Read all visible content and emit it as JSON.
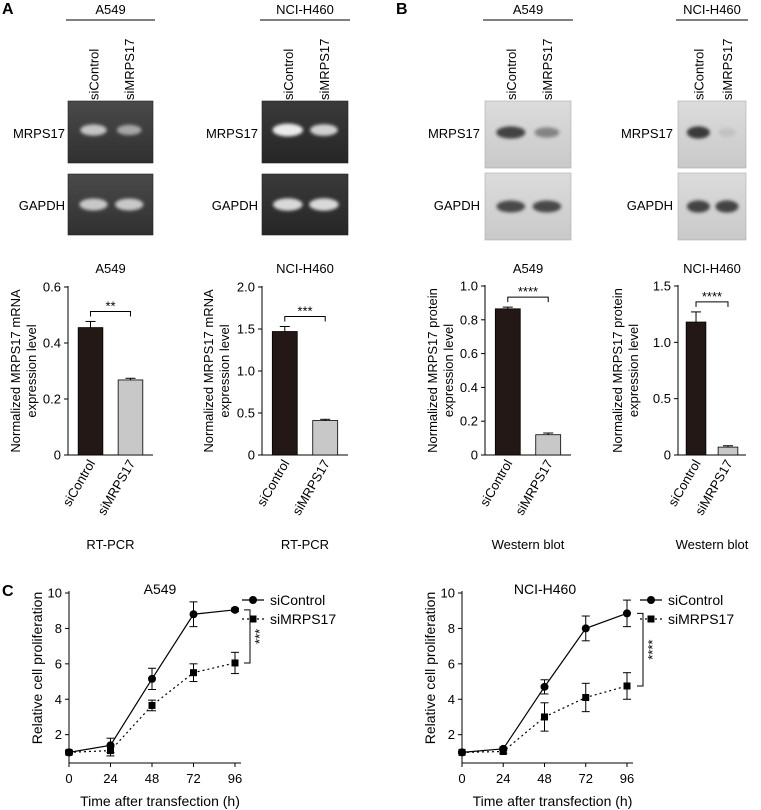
{
  "panel_letters": [
    "A",
    "B",
    "C"
  ],
  "gels": [
    {
      "cell_line": "A549",
      "lanes": [
        "siControl",
        "siMRPS17"
      ],
      "rows": [
        "MRPS17",
        "GAPDH"
      ],
      "style": "dark"
    },
    {
      "cell_line": "NCI-H460",
      "lanes": [
        "siControl",
        "siMRPS17"
      ],
      "rows": [
        "MRPS17",
        "GAPDH"
      ],
      "style": "dark"
    },
    {
      "cell_line": "A549",
      "lanes": [
        "siControl",
        "siMRPS17"
      ],
      "rows": [
        "MRPS17",
        "GAPDH"
      ],
      "style": "light"
    },
    {
      "cell_line": "NCI-H460",
      "lanes": [
        "siControl",
        "siMRPS17"
      ],
      "rows": [
        "MRPS17",
        "GAPDH"
      ],
      "style": "light"
    }
  ],
  "chart_data": [
    {
      "type": "bar",
      "title": "A549",
      "categories": [
        "siControl",
        "siMRPS17"
      ],
      "values": [
        0.455,
        0.268
      ],
      "errors": [
        0.022,
        0.006
      ],
      "ylabel": [
        "Normalized MRPS17 mRNA",
        "expression level"
      ],
      "xlabel": "RT-PCR",
      "ylim": [
        0,
        0.6
      ],
      "yticks": [
        0,
        0.2,
        0.4,
        0.6
      ],
      "ytick_labels": [
        "0",
        "0.2",
        "0.4",
        "0.6"
      ],
      "significance": "**"
    },
    {
      "type": "bar",
      "title": "NCI-H460",
      "categories": [
        "siControl",
        "siMRPS17"
      ],
      "values": [
        1.47,
        0.41
      ],
      "errors": [
        0.06,
        0.015
      ],
      "ylabel": [
        "Normalized MRPS17 mRNA",
        "expression level"
      ],
      "xlabel": "RT-PCR",
      "ylim": [
        0,
        2.0
      ],
      "yticks": [
        0,
        0.5,
        1.0,
        1.5,
        2.0
      ],
      "ytick_labels": [
        "0",
        "0.5",
        "1.0",
        "1.5",
        "2.0"
      ],
      "significance": "***"
    },
    {
      "type": "bar",
      "title": "A549",
      "categories": [
        "siControl",
        "siMRPS17"
      ],
      "values": [
        0.865,
        0.12
      ],
      "errors": [
        0.01,
        0.01
      ],
      "ylabel": [
        "Normalized MRPS17 protein",
        "expression level"
      ],
      "xlabel": "Western blot",
      "ylim": [
        0,
        1.0
      ],
      "yticks": [
        0,
        0.2,
        0.4,
        0.6,
        0.8,
        1.0
      ],
      "ytick_labels": [
        "0",
        "0.2",
        "0.4",
        "0.6",
        "0.8",
        "1.0"
      ],
      "significance": "****"
    },
    {
      "type": "bar",
      "title": "NCI-H460",
      "categories": [
        "siControl",
        "siMRPS17"
      ],
      "values": [
        1.18,
        0.07
      ],
      "errors": [
        0.09,
        0.012
      ],
      "ylabel": [
        "Normalized MRPS17 protein",
        "expression level"
      ],
      "xlabel": "Western blot",
      "ylim": [
        0,
        1.5
      ],
      "yticks": [
        0,
        0.5,
        1.0,
        1.5
      ],
      "ytick_labels": [
        "0",
        "0.5",
        "1.0",
        "1.5"
      ],
      "significance": "****"
    },
    {
      "type": "line",
      "title": "A549",
      "x": [
        0,
        24,
        48,
        72,
        96
      ],
      "xlim": [
        0,
        96
      ],
      "xticks": [
        0,
        24,
        48,
        72,
        96
      ],
      "xtick_labels": [
        "0",
        "24",
        "48",
        "72",
        "96"
      ],
      "ylim": [
        0,
        10
      ],
      "yticks": [
        2,
        4,
        6,
        8,
        10
      ],
      "ytick_labels": [
        "2",
        "4",
        "6",
        "8",
        "10"
      ],
      "xlabel": "Time after transfection (h)",
      "ylabel": "Relative cell proliferation",
      "significance": "***",
      "series": [
        {
          "name": "siControl",
          "values": [
            1.0,
            1.4,
            5.15,
            8.8,
            9.05
          ],
          "errors": [
            0.1,
            0.4,
            0.6,
            0.7,
            0.1
          ],
          "marker": "circle",
          "dash": false
        },
        {
          "name": "siMRPS17",
          "values": [
            1.0,
            1.1,
            3.65,
            5.5,
            6.05
          ],
          "errors": [
            0.05,
            0.3,
            0.3,
            0.5,
            0.6
          ],
          "marker": "square",
          "dash": true
        }
      ]
    },
    {
      "type": "line",
      "title": "NCI-H460",
      "x": [
        0,
        24,
        48,
        72,
        96
      ],
      "xlim": [
        0,
        96
      ],
      "xticks": [
        0,
        24,
        48,
        72,
        96
      ],
      "xtick_labels": [
        "0",
        "24",
        "48",
        "72",
        "96"
      ],
      "ylim": [
        0,
        10
      ],
      "yticks": [
        2,
        4,
        6,
        8,
        10
      ],
      "ytick_labels": [
        "2",
        "4",
        "6",
        "8",
        "10"
      ],
      "xlabel": "Time after transfection (h)",
      "ylabel": "Relative cell proliferation",
      "significance": "****",
      "series": [
        {
          "name": "siControl",
          "values": [
            1.0,
            1.2,
            4.7,
            8.0,
            8.85
          ],
          "errors": [
            0.05,
            0.1,
            0.4,
            0.7,
            0.75
          ],
          "marker": "circle",
          "dash": false
        },
        {
          "name": "siMRPS17",
          "values": [
            1.0,
            1.05,
            3.0,
            4.1,
            4.75
          ],
          "errors": [
            0.05,
            0.1,
            0.8,
            0.8,
            0.75
          ],
          "marker": "square",
          "dash": true
        }
      ]
    }
  ]
}
